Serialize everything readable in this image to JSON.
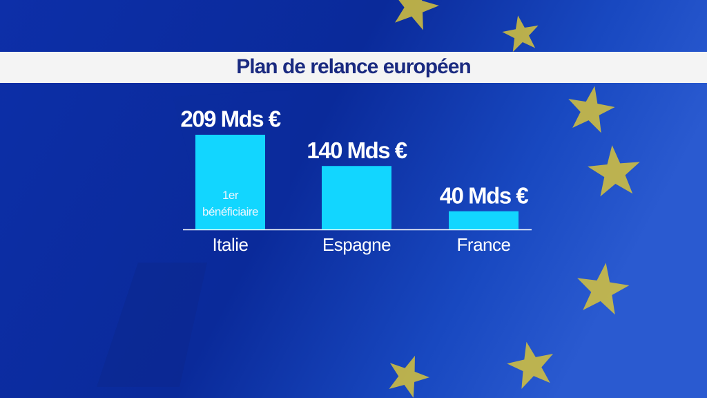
{
  "chart_data": {
    "type": "bar",
    "title": "Plan de relance européen",
    "categories": [
      "Italie",
      "Espagne",
      "France"
    ],
    "values": [
      209,
      140,
      40
    ],
    "value_labels": [
      "209 Mds €",
      "140 Mds €",
      "40 Mds €"
    ],
    "color": "#12d6ff",
    "annotation": "1er bénéficiaire"
  }
}
